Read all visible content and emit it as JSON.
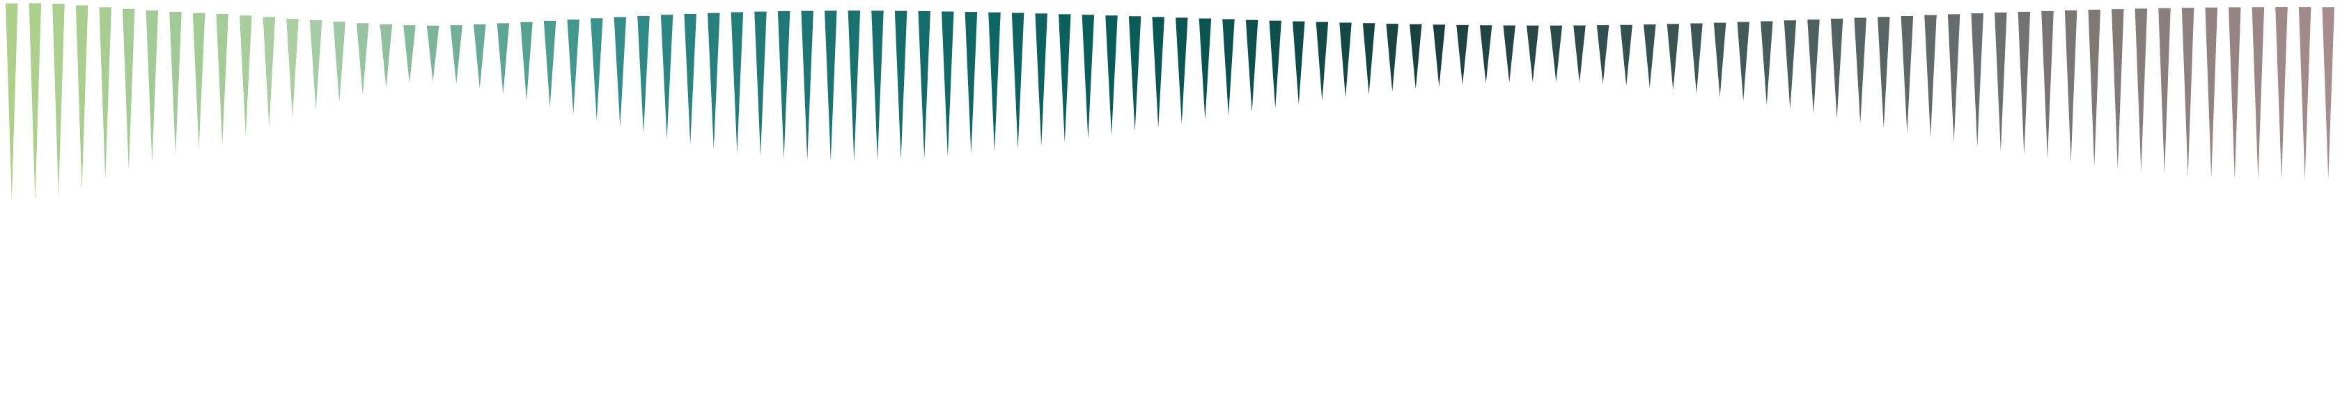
{
  "background": "#ffffff",
  "spikes": [
    {
      "value": 0.922,
      "color": "#afd08a"
    },
    {
      "value": 0.93,
      "color": "#add08c"
    },
    {
      "value": 0.906,
      "color": "#abcf8e"
    },
    {
      "value": 0.851,
      "color": "#a9ce90"
    },
    {
      "value": 0.781,
      "color": "#a7cd92"
    },
    {
      "value": 0.717,
      "color": "#a5cc94"
    },
    {
      "value": 0.659,
      "color": "#a3cb96"
    },
    {
      "value": 0.605,
      "color": "#a1ca98"
    },
    {
      "value": 0.56,
      "color": "#a3cb96"
    },
    {
      "value": 0.531,
      "color": "#a5cc98"
    },
    {
      "value": 0.468,
      "color": "#a7cd9a"
    },
    {
      "value": 0.41,
      "color": "#a9cea0"
    },
    {
      "value": 0.346,
      "color": "#abcfa3"
    },
    {
      "value": 0.287,
      "color": "#a6cca6"
    },
    {
      "value": 0.232,
      "color": "#9fc9a5"
    },
    {
      "value": 0.179,
      "color": "#98c4a2"
    },
    {
      "value": 0.13,
      "color": "#8fbf9f"
    },
    {
      "value": 0.098,
      "color": "#86ba9c"
    },
    {
      "value": 0.085,
      "color": "#7cb59a"
    },
    {
      "value": 0.101,
      "color": "#72b098"
    },
    {
      "value": 0.133,
      "color": "#68ab96"
    },
    {
      "value": 0.174,
      "color": "#5ea694"
    },
    {
      "value": 0.22,
      "color": "#55a192"
    },
    {
      "value": 0.267,
      "color": "#4c9c90"
    },
    {
      "value": 0.314,
      "color": "#43978e"
    },
    {
      "value": 0.361,
      "color": "#3a928c"
    },
    {
      "value": 0.407,
      "color": "#348d8a"
    },
    {
      "value": 0.452,
      "color": "#2f8a87"
    },
    {
      "value": 0.494,
      "color": "#2c8684"
    },
    {
      "value": 0.531,
      "color": "#298381"
    },
    {
      "value": 0.564,
      "color": "#26807e"
    },
    {
      "value": 0.592,
      "color": "#237d7b"
    },
    {
      "value": 0.614,
      "color": "#217a78"
    },
    {
      "value": 0.631,
      "color": "#1f7876"
    },
    {
      "value": 0.642,
      "color": "#1d7674"
    },
    {
      "value": 0.648,
      "color": "#1b7472"
    },
    {
      "value": 0.65,
      "color": "#197270"
    },
    {
      "value": 0.647,
      "color": "#17706e"
    },
    {
      "value": 0.641,
      "color": "#156e6c"
    },
    {
      "value": 0.632,
      "color": "#136c6a"
    },
    {
      "value": 0.619,
      "color": "#116a68"
    },
    {
      "value": 0.603,
      "color": "#0f6866"
    },
    {
      "value": 0.585,
      "color": "#0e6664"
    },
    {
      "value": 0.565,
      "color": "#0d6462"
    },
    {
      "value": 0.542,
      "color": "#0c6260"
    },
    {
      "value": 0.518,
      "color": "#0b605e"
    },
    {
      "value": 0.493,
      "color": "#0a5e5c"
    },
    {
      "value": 0.467,
      "color": "#0a5c5a"
    },
    {
      "value": 0.44,
      "color": "#0a5a58"
    },
    {
      "value": 0.412,
      "color": "#0a5856"
    },
    {
      "value": 0.384,
      "color": "#0a5654"
    },
    {
      "value": 0.356,
      "color": "#0b5452"
    },
    {
      "value": 0.328,
      "color": "#0c5250"
    },
    {
      "value": 0.3,
      "color": "#0d504e"
    },
    {
      "value": 0.273,
      "color": "#0e4e4c"
    },
    {
      "value": 0.247,
      "color": "#104c4a"
    },
    {
      "value": 0.222,
      "color": "#124a48"
    },
    {
      "value": 0.198,
      "color": "#144846"
    },
    {
      "value": 0.176,
      "color": "#164644"
    },
    {
      "value": 0.156,
      "color": "#184442"
    },
    {
      "value": 0.138,
      "color": "#1a4240"
    },
    {
      "value": 0.122,
      "color": "#1c4040"
    },
    {
      "value": 0.108,
      "color": "#1f4242"
    },
    {
      "value": 0.098,
      "color": "#224444"
    },
    {
      "value": 0.091,
      "color": "#254646"
    },
    {
      "value": 0.088,
      "color": "#284848"
    },
    {
      "value": 0.088,
      "color": "#2b4a4a"
    },
    {
      "value": 0.093,
      "color": "#2e4c4c"
    },
    {
      "value": 0.101,
      "color": "#314e4e"
    },
    {
      "value": 0.113,
      "color": "#345050"
    },
    {
      "value": 0.129,
      "color": "#375252"
    },
    {
      "value": 0.148,
      "color": "#3a5454"
    },
    {
      "value": 0.17,
      "color": "#3d5656"
    },
    {
      "value": 0.195,
      "color": "#405858"
    },
    {
      "value": 0.222,
      "color": "#435a5a"
    },
    {
      "value": 0.251,
      "color": "#465c5c"
    },
    {
      "value": 0.282,
      "color": "#4a5e5e"
    },
    {
      "value": 0.314,
      "color": "#4e6060"
    },
    {
      "value": 0.347,
      "color": "#526262"
    },
    {
      "value": 0.381,
      "color": "#566464"
    },
    {
      "value": 0.415,
      "color": "#5a6666"
    },
    {
      "value": 0.449,
      "color": "#5e6868"
    },
    {
      "value": 0.483,
      "color": "#626a6a"
    },
    {
      "value": 0.516,
      "color": "#666c6c"
    },
    {
      "value": 0.548,
      "color": "#6a6e6e"
    },
    {
      "value": 0.579,
      "color": "#6e7070"
    },
    {
      "value": 0.608,
      "color": "#727272"
    },
    {
      "value": 0.636,
      "color": "#767474"
    },
    {
      "value": 0.662,
      "color": "#7a7676"
    },
    {
      "value": 0.686,
      "color": "#7e7878"
    },
    {
      "value": 0.708,
      "color": "#827a7a"
    },
    {
      "value": 0.727,
      "color": "#867c7c"
    },
    {
      "value": 0.744,
      "color": "#8a7e7e"
    },
    {
      "value": 0.758,
      "color": "#8e8080"
    },
    {
      "value": 0.769,
      "color": "#928282"
    },
    {
      "value": 0.778,
      "color": "#968484"
    },
    {
      "value": 0.783,
      "color": "#9a8686"
    },
    {
      "value": 0.786,
      "color": "#9e8888"
    },
    {
      "value": 0.785,
      "color": "#a28a8a"
    },
    {
      "value": 0.782,
      "color": "#a68c8c"
    }
  ]
}
